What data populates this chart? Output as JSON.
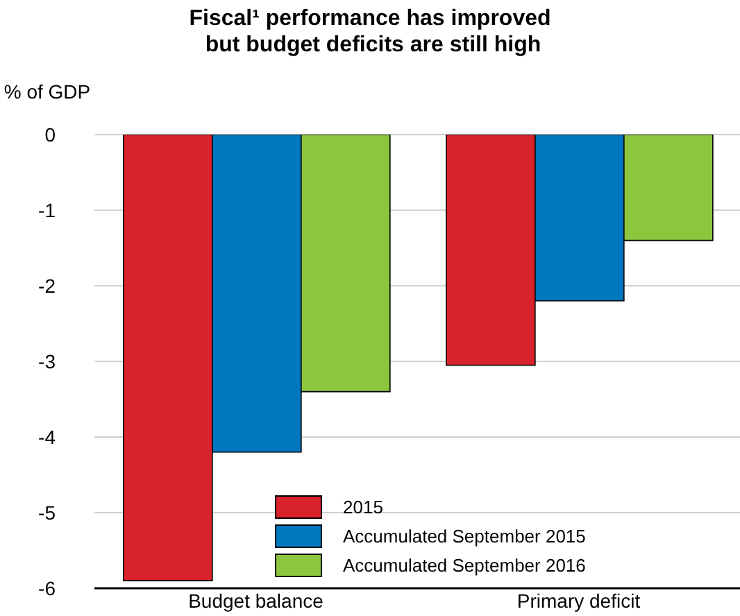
{
  "chart_data": {
    "type": "bar",
    "title": "Fiscal¹ performance has improved\n but budget deficits are still high",
    "ylabel": "% of GDP",
    "categories": [
      "Budget balance",
      "Primary deficit"
    ],
    "series": [
      {
        "name": "2015",
        "color": "#d8232a",
        "values": [
          -5.9,
          -3.05
        ]
      },
      {
        "name": "Accumulated September 2015",
        "color": "#0077bf",
        "values": [
          -4.2,
          -2.2
        ]
      },
      {
        "name": "Accumulated September 2016",
        "color": "#8cc63f",
        "values": [
          -3.4,
          -1.4
        ]
      }
    ],
    "ylim": [
      -6,
      0
    ],
    "yticks": [
      0,
      -1,
      -2,
      -3,
      -4,
      -5,
      -6
    ],
    "grid": "y",
    "legend": "bottom"
  }
}
